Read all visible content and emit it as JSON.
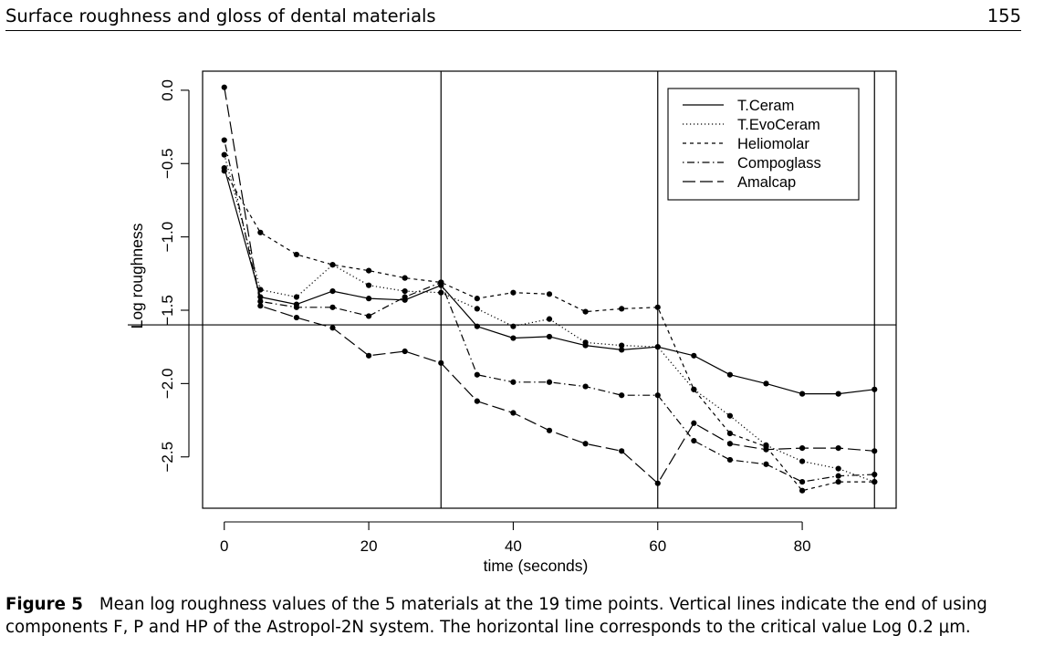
{
  "header": {
    "running_title": "Surface roughness and gloss of dental materials",
    "page_number": "155"
  },
  "caption": {
    "label": "Figure 5",
    "text": "Mean log roughness values of the 5 materials at the 19 time points. Vertical lines indicate the end of using components F, P and HP of the Astropol-2N system. The horizontal line corresponds to the critical value Log 0.2 μm."
  },
  "chart_data": {
    "type": "line",
    "title": "",
    "xlabel": "time (seconds)",
    "ylabel": "Log roughness",
    "xlim": [
      -3,
      93
    ],
    "ylim": [
      -2.85,
      0.13
    ],
    "x_ticks": [
      0,
      20,
      40,
      60,
      80
    ],
    "x_tick_labels": [
      "0",
      "20",
      "40",
      "60",
      "80"
    ],
    "y_ticks": [
      0.0,
      -0.5,
      -1.0,
      -1.5,
      -2.0,
      -2.5
    ],
    "y_tick_labels": [
      "0.0",
      "−0.5",
      "−1.0",
      "−1.5",
      "−2.0",
      "−2.5"
    ],
    "legend_position": "top-right",
    "x": [
      0,
      5,
      10,
      15,
      20,
      25,
      30,
      35,
      40,
      45,
      50,
      55,
      60,
      65,
      70,
      75,
      80,
      85,
      90
    ],
    "series": [
      {
        "name": "T.Ceram",
        "line_style": "solid",
        "values": [
          -0.53,
          -1.41,
          -1.46,
          -1.37,
          -1.42,
          -1.43,
          -1.33,
          -1.61,
          -1.69,
          -1.68,
          -1.74,
          -1.77,
          -1.75,
          -1.81,
          -1.94,
          -2.0,
          -2.07,
          -2.07,
          -2.04
        ]
      },
      {
        "name": "T.EvoCeram",
        "line_style": "dotted",
        "values": [
          -0.44,
          -1.36,
          -1.41,
          -1.19,
          -1.33,
          -1.37,
          -1.38,
          -1.49,
          -1.61,
          -1.56,
          -1.72,
          -1.74,
          -1.75,
          -2.04,
          -2.22,
          -2.42,
          -2.53,
          -2.58,
          -2.67
        ]
      },
      {
        "name": "Heliomolar",
        "line_style": "dashed",
        "values": [
          -0.55,
          -0.97,
          -1.12,
          -1.19,
          -1.23,
          -1.28,
          -1.31,
          -1.42,
          -1.38,
          -1.39,
          -1.51,
          -1.49,
          -1.48,
          -2.04,
          -2.34,
          -2.43,
          -2.73,
          -2.67,
          -2.67
        ]
      },
      {
        "name": "Compoglass",
        "line_style": "dash-dot",
        "values": [
          -0.34,
          -1.44,
          -1.48,
          -1.48,
          -1.54,
          -1.41,
          -1.31,
          -1.94,
          -1.99,
          -1.99,
          -2.02,
          -2.08,
          -2.08,
          -2.39,
          -2.52,
          -2.55,
          -2.67,
          -2.63,
          -2.62
        ]
      },
      {
        "name": "Amalcap",
        "line_style": "long-dash",
        "values": [
          0.02,
          -1.47,
          -1.55,
          -1.62,
          -1.81,
          -1.78,
          -1.86,
          -2.12,
          -2.2,
          -2.32,
          -2.41,
          -2.46,
          -2.68,
          -2.27,
          -2.41,
          -2.45,
          -2.44,
          -2.44,
          -2.46
        ]
      }
    ],
    "reference_lines": {
      "vertical_x": [
        30,
        60,
        90
      ],
      "horizontal_y": -1.6
    }
  }
}
